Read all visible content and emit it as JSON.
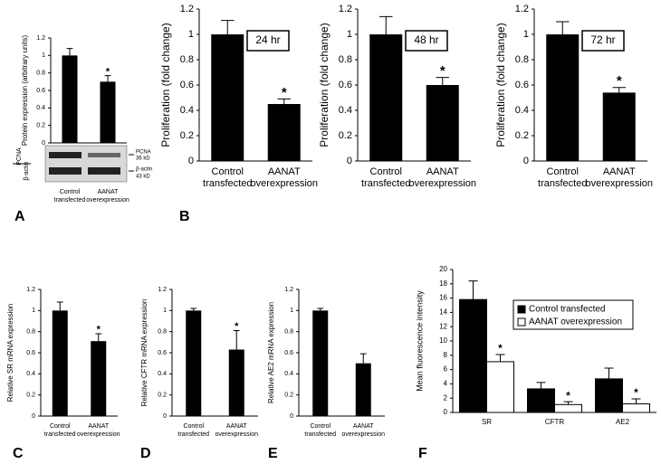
{
  "chart_data": [
    {
      "type": "bar",
      "label": "A",
      "y_label": "Protein expression (arbitrary units)",
      "categories": [
        [
          "Control",
          "transfected"
        ],
        [
          "AANAT",
          "overexpression"
        ]
      ],
      "values": [
        1.0,
        0.7
      ],
      "errors": [
        0.08,
        0.07
      ],
      "color": "#000000",
      "annotations": [
        {
          "index": 1,
          "text": "*"
        }
      ],
      "ylim": [
        0,
        1.2
      ],
      "yticks": [
        0,
        0.2,
        0.4,
        0.6,
        0.8,
        1,
        1.2
      ],
      "blot_labels": {
        "pcna": "PCNA",
        "pcna_kd": "36 kD",
        "actin": "β-actin",
        "actin_kd": "43 kD",
        "ratio_top": "PCNA",
        "ratio_bottom": "β-actin"
      }
    },
    {
      "type": "bar",
      "label": "B",
      "box_label": "24 hr",
      "y_label": "Proliferation (fold change)",
      "categories": [
        [
          "Control",
          "transfected"
        ],
        [
          "AANAT",
          "overexpression"
        ]
      ],
      "values": [
        1.0,
        0.45
      ],
      "errors": [
        0.11,
        0.04
      ],
      "color": "#000000",
      "annotations": [
        {
          "index": 1,
          "text": "*"
        }
      ],
      "ylim": [
        0,
        1.2
      ],
      "yticks": [
        0,
        0.2,
        0.4,
        0.6,
        0.8,
        1,
        1.2
      ]
    },
    {
      "type": "bar",
      "box_label": "48 hr",
      "y_label": "Proliferation (fold change)",
      "categories": [
        [
          "Control",
          "transfected"
        ],
        [
          "AANAT",
          "overexpression"
        ]
      ],
      "values": [
        1.0,
        0.6
      ],
      "errors": [
        0.14,
        0.06
      ],
      "color": "#000000",
      "annotations": [
        {
          "index": 1,
          "text": "*"
        }
      ],
      "ylim": [
        0,
        1.2
      ],
      "yticks": [
        0,
        0.2,
        0.4,
        0.6,
        0.8,
        1,
        1.2
      ]
    },
    {
      "type": "bar",
      "box_label": "72 hr",
      "y_label": "Proliferation (fold change)",
      "categories": [
        [
          "Control",
          "transfected"
        ],
        [
          "AANAT",
          "overexpression"
        ]
      ],
      "values": [
        1.0,
        0.54
      ],
      "errors": [
        0.1,
        0.04
      ],
      "color": "#000000",
      "annotations": [
        {
          "index": 1,
          "text": "*"
        }
      ],
      "ylim": [
        0,
        1.2
      ],
      "yticks": [
        0,
        0.2,
        0.4,
        0.6,
        0.8,
        1,
        1.2
      ]
    },
    {
      "type": "bar",
      "label": "C",
      "y_label": "Relative SR mRNA expression",
      "categories": [
        [
          "Control",
          "transfected"
        ],
        [
          "AANAT",
          "overexpression"
        ]
      ],
      "values": [
        1.0,
        0.71
      ],
      "errors": [
        0.08,
        0.07
      ],
      "color": "#000000",
      "annotations": [
        {
          "index": 1,
          "text": "*"
        }
      ],
      "ylim": [
        0,
        1.2
      ],
      "yticks": [
        0,
        0.2,
        0.4,
        0.6,
        0.8,
        1,
        1.2
      ]
    },
    {
      "type": "bar",
      "label": "D",
      "y_label": "Relative CFTR mRNA expression",
      "categories": [
        [
          "Control",
          "transfected"
        ],
        [
          "AANAT",
          "overexpression"
        ]
      ],
      "values": [
        1.0,
        0.63
      ],
      "errors": [
        0.02,
        0.18
      ],
      "color": "#000000",
      "annotations": [
        {
          "index": 1,
          "text": "*"
        }
      ],
      "ylim": [
        0,
        1.2
      ],
      "yticks": [
        0,
        0.2,
        0.4,
        0.6,
        0.8,
        1,
        1.2
      ]
    },
    {
      "type": "bar",
      "label": "E",
      "y_label": "Relative AE2 mRNA expression",
      "categories": [
        [
          "Control",
          "transfected"
        ],
        [
          "AANAT",
          "overexpression"
        ]
      ],
      "values": [
        1.0,
        0.5
      ],
      "errors": [
        0.02,
        0.09
      ],
      "color": "#000000",
      "ylim": [
        0,
        1.2
      ],
      "yticks": [
        0,
        0.2,
        0.4,
        0.6,
        0.8,
        1,
        1.2
      ]
    },
    {
      "type": "grouped_bar",
      "label": "F",
      "y_label": "Mean fluorescence intensity",
      "categories": [
        "SR",
        "CFTR",
        "AE2"
      ],
      "series": [
        {
          "name": "Control transfected",
          "color": "#000000",
          "values": [
            15.8,
            3.3,
            4.7
          ],
          "errors": [
            2.6,
            0.9,
            1.5
          ]
        },
        {
          "name": "AANAT overexpression",
          "color": "#ffffff",
          "values": [
            7.1,
            1.1,
            1.2
          ],
          "errors": [
            1.0,
            0.4,
            0.7
          ],
          "annotations": [
            {
              "index": 0,
              "text": "*"
            },
            {
              "index": 1,
              "text": "*"
            },
            {
              "index": 2,
              "text": "*"
            }
          ]
        }
      ],
      "ylim": [
        0,
        20
      ],
      "yticks": [
        0,
        2,
        4,
        6,
        8,
        10,
        12,
        14,
        16,
        18,
        20
      ],
      "legend": "upper right"
    }
  ]
}
